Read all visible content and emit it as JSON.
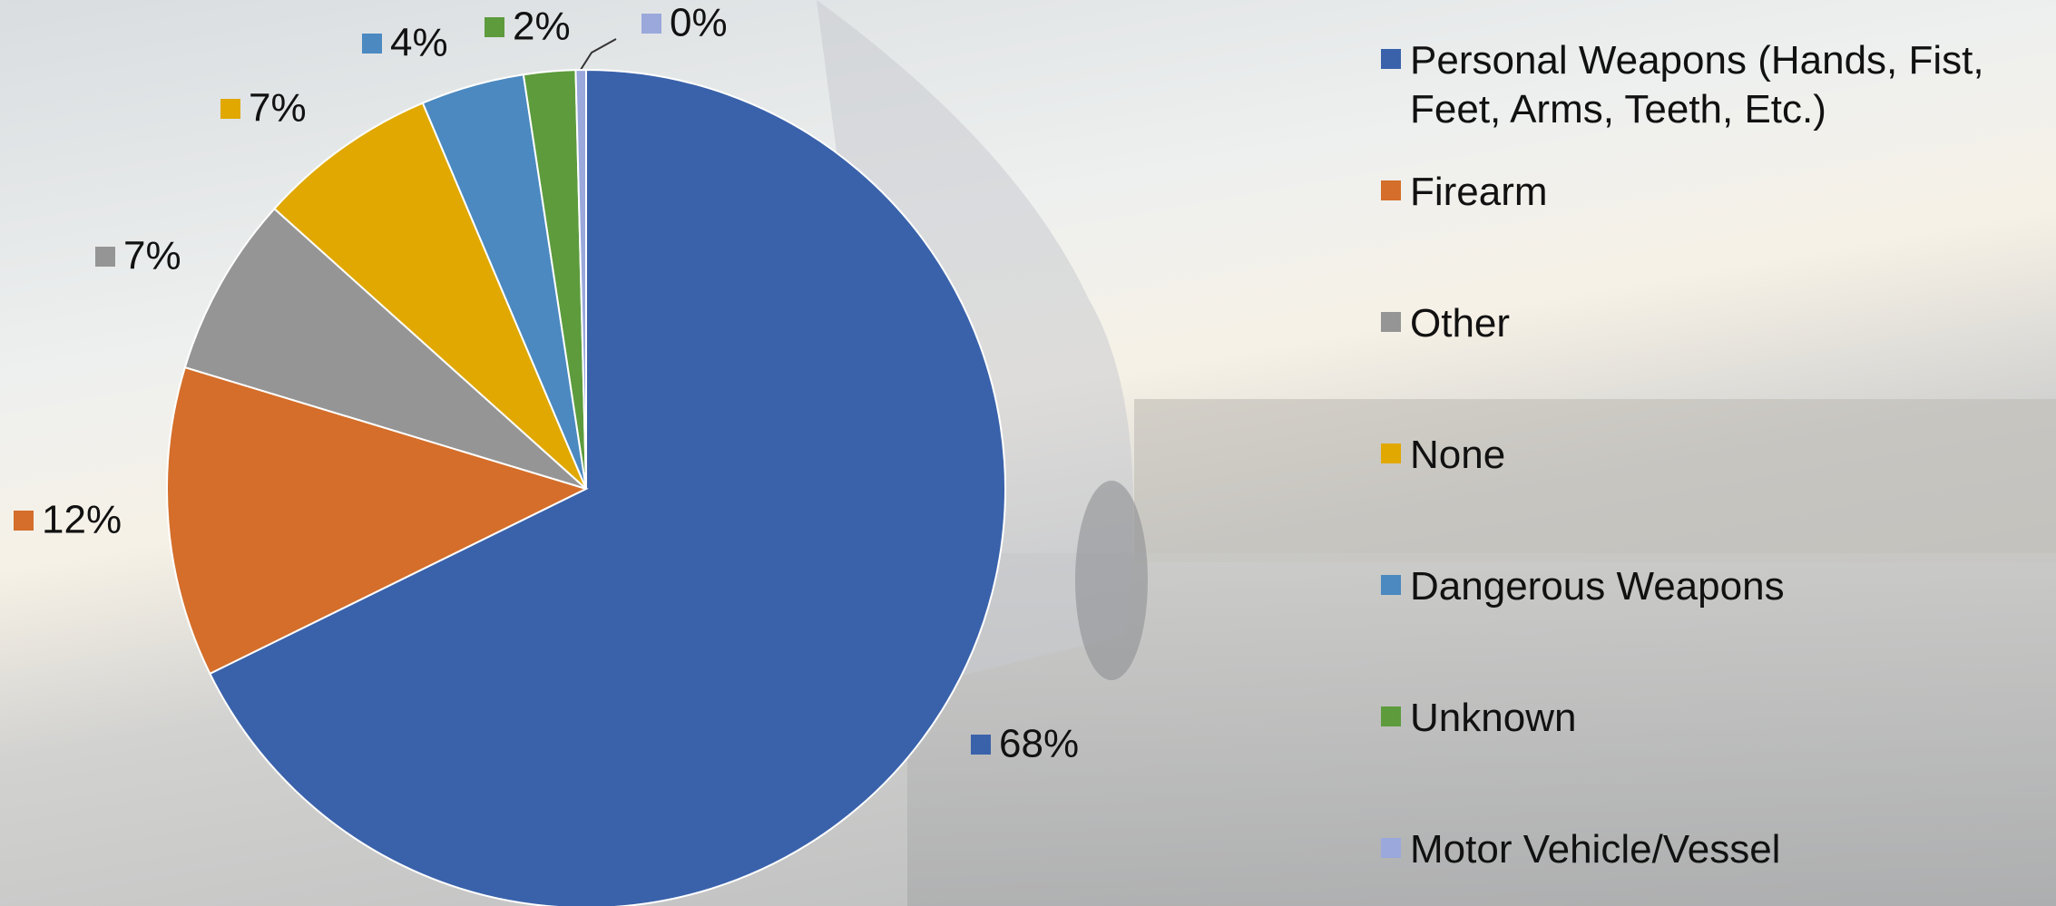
{
  "chart_data": {
    "type": "pie",
    "categories": [
      "Personal Weapons (Hands, Fist, Feet, Arms, Teeth, Etc.)",
      "Firearm",
      "Other",
      "None",
      "Dangerous Weapons",
      "Unknown",
      "Motor Vehicle/Vessel"
    ],
    "values": [
      68,
      12,
      7,
      7,
      4,
      2,
      0.4
    ],
    "value_labels": [
      "68%",
      "12%",
      "7%",
      "7%",
      "4%",
      "2%",
      "0%"
    ],
    "colors": [
      "#3a62ab",
      "#d46e2a",
      "#959595",
      "#e0a800",
      "#4b89c0",
      "#5d9b3d",
      "#9aa8dc"
    ],
    "legend": "right"
  }
}
